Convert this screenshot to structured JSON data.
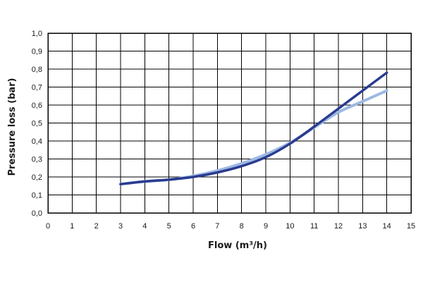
{
  "chart_data": {
    "type": "line",
    "xlabel": "Flow (m³/h)",
    "ylabel": "Pressure loss (bar)",
    "xlim": [
      0,
      15
    ],
    "ylim": [
      0,
      1.0
    ],
    "x_ticks": [
      "0",
      "1",
      "2",
      "3",
      "4",
      "5",
      "6",
      "7",
      "8",
      "9",
      "10",
      "11",
      "12",
      "13",
      "14",
      "15"
    ],
    "y_ticks": [
      "0,0",
      "0,1",
      "0,2",
      "0,3",
      "0,4",
      "0,5",
      "0,6",
      "0,7",
      "0,8",
      "0,9",
      "1,0"
    ],
    "grid": true,
    "series": [
      {
        "color": "#2a3b8f",
        "x": [
          3,
          4,
          5,
          6,
          7,
          8,
          9,
          10,
          11,
          12,
          13,
          14
        ],
        "values": [
          0.16,
          0.175,
          0.185,
          0.2,
          0.225,
          0.26,
          0.31,
          0.385,
          0.48,
          0.58,
          0.68,
          0.78
        ]
      },
      {
        "color": "#9db8e3",
        "x": [
          3,
          4,
          5,
          6,
          7,
          8,
          9,
          10,
          11,
          12,
          13,
          14
        ],
        "values": [
          0.16,
          0.175,
          0.185,
          0.205,
          0.235,
          0.275,
          0.325,
          0.39,
          0.475,
          0.56,
          0.62,
          0.68
        ]
      }
    ]
  }
}
